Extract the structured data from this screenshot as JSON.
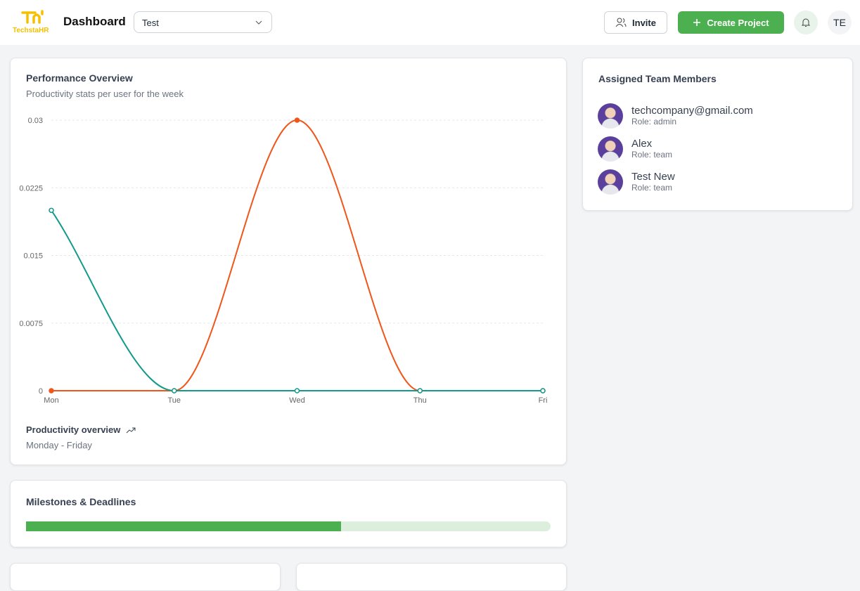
{
  "header": {
    "logo": "TechstaHR",
    "title": "Dashboard",
    "select": "Test",
    "invite": "Invite",
    "create": "Create Project",
    "avatar": "TE"
  },
  "chart_data": {
    "type": "line",
    "title": "Performance Overview",
    "subtitle": "Productivity stats per user for the week",
    "categories": [
      "Mon",
      "Tue",
      "Wed",
      "Thu",
      "Fri"
    ],
    "series": [
      {
        "color": "#f0561a",
        "values": [
          0,
          0,
          0.03,
          0,
          0
        ]
      },
      {
        "color": "#129a8b",
        "values": [
          0.02,
          0,
          0,
          0,
          0
        ]
      }
    ],
    "ylim": [
      0,
      0.03
    ],
    "yticks": [
      0,
      0.0075,
      0.015,
      0.0225,
      0.03
    ],
    "grid": true,
    "footer": "Productivity overview",
    "footer_sub": "Monday - Friday"
  },
  "team": {
    "title": "Assigned Team Members",
    "members": [
      {
        "name": "techcompany@gmail.com",
        "role": "Role: admin"
      },
      {
        "name": "Alex",
        "role": "Role: team"
      },
      {
        "name": "Test New",
        "role": "Role: team"
      }
    ]
  },
  "milestones": {
    "title": "Milestones & Deadlines",
    "progress": 60
  }
}
